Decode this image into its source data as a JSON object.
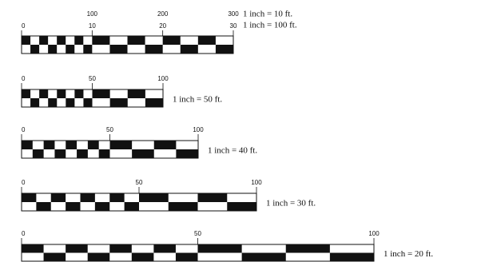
{
  "scales": [
    {
      "top_labels": [
        "100",
        "200",
        "300"
      ],
      "labels": [
        "0",
        "10",
        "20",
        "30"
      ],
      "captions": [
        "1 inch = 10 ft.",
        "1 inch = 100 ft."
      ]
    },
    {
      "labels": [
        "0",
        "50",
        "100"
      ],
      "captions": [
        "1 inch = 50 ft."
      ]
    },
    {
      "labels": [
        "0",
        "50",
        "100"
      ],
      "captions": [
        "1 inch = 40 ft."
      ]
    },
    {
      "labels": [
        "0",
        "50",
        "100"
      ],
      "captions": [
        "1 inch = 30 ft."
      ]
    },
    {
      "labels": [
        "0",
        "50",
        "100"
      ],
      "captions": [
        "1 inch = 20 ft."
      ]
    }
  ]
}
